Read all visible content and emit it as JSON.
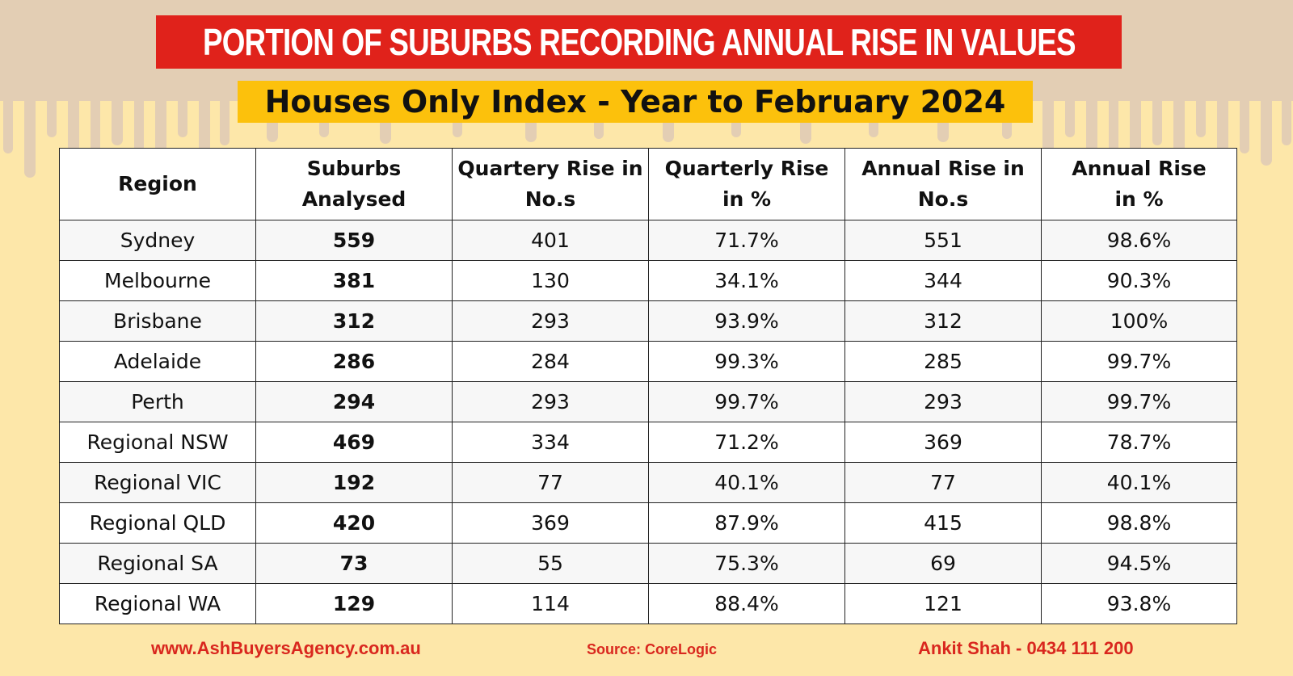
{
  "title": "PORTION OF SUBURBS RECORDING ANNUAL RISE IN VALUES",
  "subtitle": "Houses Only Index - Year to February 2024",
  "colors": {
    "title_bar": "#e0221b",
    "subtitle_bar": "#fcc10c",
    "background": "#fde7a9",
    "background_drip": "#e3ceb4",
    "footer_text": "#d9271e"
  },
  "table": {
    "headers": [
      {
        "line1": "Region",
        "line2": ""
      },
      {
        "line1": "Suburbs",
        "line2": "Analysed"
      },
      {
        "line1": "Quartery Rise in",
        "line2": "No.s"
      },
      {
        "line1": "Quarterly Rise",
        "line2": "in %"
      },
      {
        "line1": "Annual Rise in",
        "line2": "No.s"
      },
      {
        "line1": "Annual Rise",
        "line2": "in %"
      }
    ],
    "rows": [
      {
        "region": "Sydney",
        "analysed": "559",
        "q_no": "401",
        "q_pct": "71.7%",
        "a_no": "551",
        "a_pct": "98.6%"
      },
      {
        "region": "Melbourne",
        "analysed": "381",
        "q_no": "130",
        "q_pct": "34.1%",
        "a_no": "344",
        "a_pct": "90.3%"
      },
      {
        "region": "Brisbane",
        "analysed": "312",
        "q_no": "293",
        "q_pct": "93.9%",
        "a_no": "312",
        "a_pct": "100%"
      },
      {
        "region": "Adelaide",
        "analysed": "286",
        "q_no": "284",
        "q_pct": "99.3%",
        "a_no": "285",
        "a_pct": "99.7%"
      },
      {
        "region": "Perth",
        "analysed": "294",
        "q_no": "293",
        "q_pct": "99.7%",
        "a_no": "293",
        "a_pct": "99.7%"
      },
      {
        "region": "Regional NSW",
        "analysed": "469",
        "q_no": "334",
        "q_pct": "71.2%",
        "a_no": "369",
        "a_pct": "78.7%"
      },
      {
        "region": "Regional VIC",
        "analysed": "192",
        "q_no": "77",
        "q_pct": "40.1%",
        "a_no": "77",
        "a_pct": "40.1%"
      },
      {
        "region": "Regional QLD",
        "analysed": "420",
        "q_no": "369",
        "q_pct": "87.9%",
        "a_no": "415",
        "a_pct": "98.8%"
      },
      {
        "region": "Regional SA",
        "analysed": "73",
        "q_no": "55",
        "q_pct": "75.3%",
        "a_no": "69",
        "a_pct": "94.5%"
      },
      {
        "region": "Regional WA",
        "analysed": "129",
        "q_no": "114",
        "q_pct": "88.4%",
        "a_no": "121",
        "a_pct": "93.8%"
      }
    ]
  },
  "footer": {
    "website": "www.AshBuyersAgency.com.au",
    "source": "Source: CoreLogic",
    "contact": "Ankit Shah - 0434 111 200"
  }
}
